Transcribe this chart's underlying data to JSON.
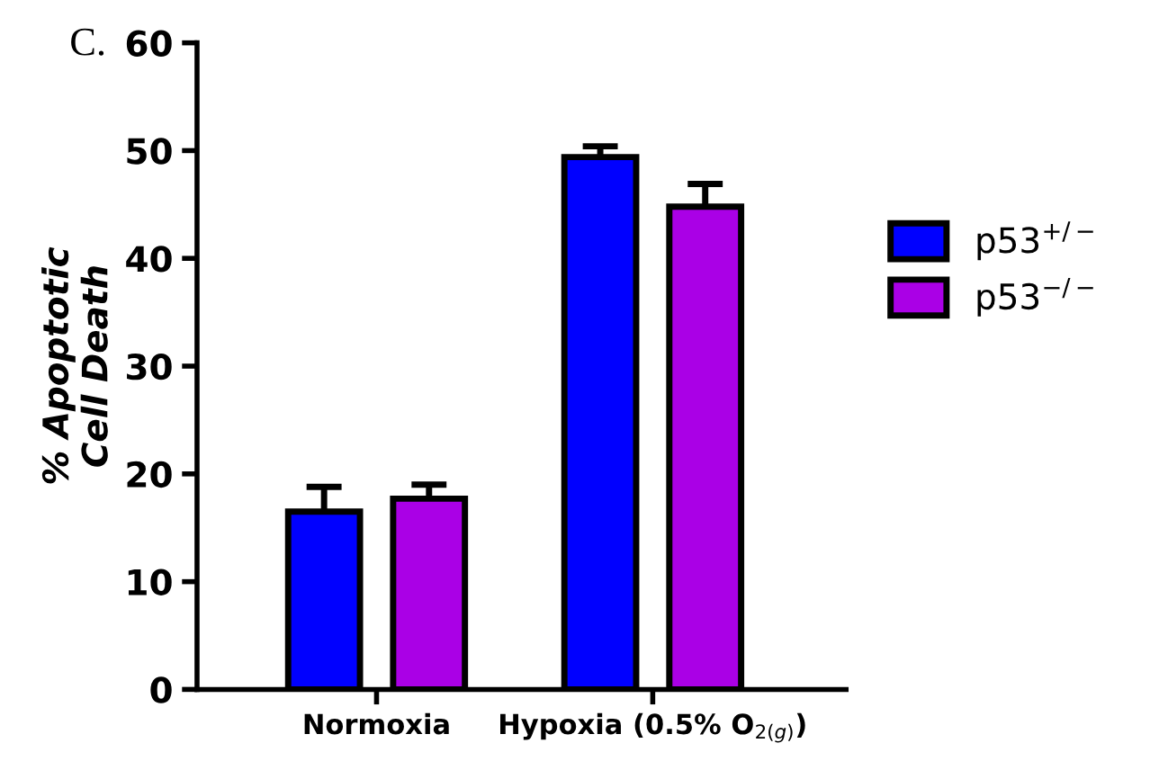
{
  "chart_data": {
    "type": "bar",
    "ylabel": "% Apoptotic\nCell Death",
    "annotations": [
      "C."
    ],
    "categories": [
      "Normoxia",
      "Hypoxia (0.5% O$_{2(g)}$)"
    ],
    "series": [
      {
        "name": "p53$^{+/−}$",
        "color": "#0000ff",
        "values": [
          16.5,
          49.4
        ],
        "errors": [
          2.3,
          1.0
        ]
      },
      {
        "name": "p53$^{−/−}$",
        "color": "#aa00e6",
        "values": [
          17.7,
          44.8
        ],
        "errors": [
          1.3,
          2.1
        ]
      }
    ],
    "ylim": [
      0,
      60
    ],
    "yticks": [
      0,
      10,
      20,
      30,
      40,
      50,
      60
    ],
    "grid": false,
    "legend": "right"
  }
}
